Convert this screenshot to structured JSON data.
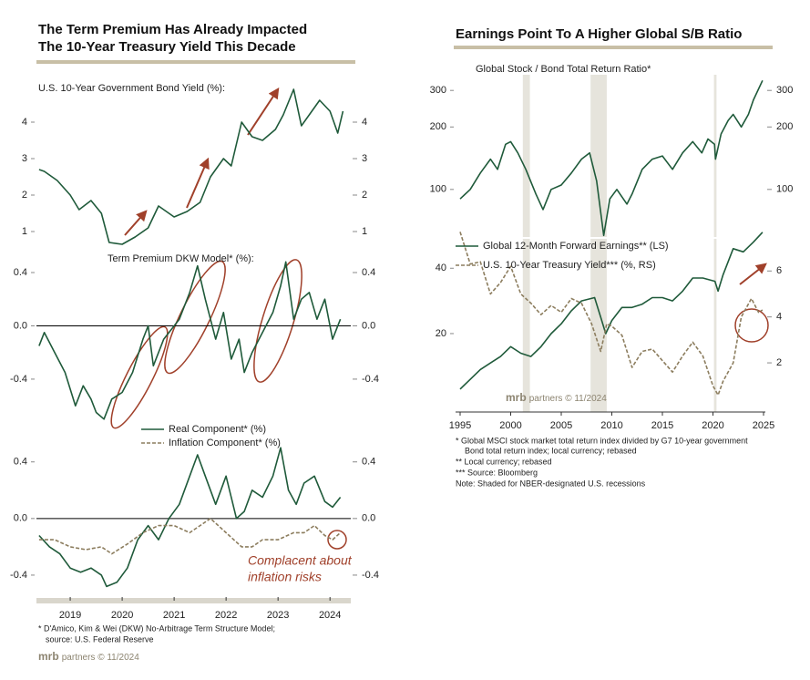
{
  "panels": [
    {
      "title": [
        "The Term Premium Has Already Impacted",
        "The 10-Year Treasury Yield This Decade"
      ],
      "footnotes": [
        "* D'Amico, Kim & Wei (DKW) No-Arbitrage Term Structure Model;",
        "source: U.S. Federal Reserve"
      ],
      "logo": {
        "brand": "mrb",
        "text": "partners © 11/2024"
      }
    },
    {
      "title": [
        "Earnings Point To A Higher Global S/B Ratio"
      ],
      "footnotes": [
        "* Global MSCI stock market total return index divided by G7 10-year government",
        "Bond total return index; local currency; rebased",
        "** Local currency; rebased",
        "*** Source: Bloomberg",
        "Note: Shaded for NBER-designated U.S. recessions"
      ]
    }
  ],
  "chart_data": [
    {
      "type": "line",
      "subtitle": "U.S. 10-Year Government Bond Yield (%):",
      "xlim": [
        2018.85,
        2024.9
      ],
      "ylim": [
        0.55,
        5.05
      ],
      "yticks": [
        1,
        2,
        3,
        4
      ],
      "series": [
        {
          "color": "#1f5a3a",
          "x": [
            2018.9,
            2019.0,
            2019.25,
            2019.5,
            2019.67,
            2019.9,
            2020.1,
            2020.25,
            2020.5,
            2020.75,
            2021.0,
            2021.2,
            2021.5,
            2021.75,
            2022.0,
            2022.2,
            2022.45,
            2022.6,
            2022.8,
            2023.0,
            2023.2,
            2023.45,
            2023.6,
            2023.8,
            2023.95,
            2024.1,
            2024.3,
            2024.5,
            2024.65,
            2024.75
          ],
          "values": [
            2.7,
            2.65,
            2.4,
            2.0,
            1.6,
            1.85,
            1.5,
            0.7,
            0.65,
            0.85,
            1.1,
            1.7,
            1.4,
            1.55,
            1.8,
            2.5,
            3.0,
            2.8,
            4.0,
            3.6,
            3.5,
            3.8,
            4.2,
            4.9,
            3.9,
            4.2,
            4.6,
            4.3,
            3.7,
            4.3
          ]
        }
      ]
    },
    {
      "type": "line",
      "subtitle": "Term Premium DKW Model* (%):",
      "xlim": [
        2018.85,
        2024.9
      ],
      "ylim": [
        -0.77,
        0.53
      ],
      "yticks": [
        -0.4,
        {
          "value": 0,
          "label": "0.0"
        },
        0.4
      ],
      "zero_line": true,
      "series": [
        {
          "color": "#1f5a3a",
          "x": [
            2018.9,
            2019.0,
            2019.2,
            2019.4,
            2019.6,
            2019.75,
            2019.9,
            2020.0,
            2020.15,
            2020.3,
            2020.5,
            2020.7,
            2020.9,
            2021.0,
            2021.1,
            2021.3,
            2021.6,
            2021.8,
            2021.95,
            2022.1,
            2022.3,
            2022.45,
            2022.6,
            2022.75,
            2022.85,
            2023.0,
            2023.2,
            2023.4,
            2023.55,
            2023.65,
            2023.8,
            2023.95,
            2024.1,
            2024.25,
            2024.4,
            2024.55,
            2024.7
          ],
          "values": [
            -0.15,
            -0.05,
            -0.2,
            -0.35,
            -0.6,
            -0.45,
            -0.55,
            -0.65,
            -0.7,
            -0.55,
            -0.5,
            -0.35,
            -0.1,
            0.0,
            -0.3,
            -0.1,
            0.05,
            0.25,
            0.45,
            0.2,
            -0.1,
            0.1,
            -0.25,
            -0.1,
            -0.35,
            -0.2,
            -0.05,
            0.1,
            0.3,
            0.48,
            0.05,
            0.2,
            0.25,
            0.05,
            0.2,
            -0.1,
            0.05
          ]
        }
      ]
    },
    {
      "type": "line",
      "xlim": [
        2018.85,
        2024.9
      ],
      "ylim": [
        -0.555,
        0.54
      ],
      "yticks": [
        -0.4,
        {
          "value": 0,
          "label": "0.0"
        },
        0.4
      ],
      "zero_line": true,
      "legend": true,
      "xticks": [
        {
          "value": 2019.5,
          "label": "2019"
        },
        {
          "value": 2020.5,
          "label": "2020"
        },
        {
          "value": 2021.5,
          "label": "2021"
        },
        {
          "value": 2022.5,
          "label": "2022"
        },
        {
          "value": 2023.5,
          "label": "2023"
        },
        {
          "value": 2024.5,
          "label": "2024"
        }
      ],
      "annotation": [
        "Complacent about",
        "inflation risks"
      ],
      "series": [
        {
          "name": "Real Component* (%)",
          "color": "#1f5a3a",
          "x": [
            2018.9,
            2019.1,
            2019.3,
            2019.5,
            2019.7,
            2019.9,
            2020.1,
            2020.2,
            2020.4,
            2020.6,
            2020.8,
            2021.0,
            2021.2,
            2021.4,
            2021.6,
            2021.8,
            2021.95,
            2022.1,
            2022.3,
            2022.5,
            2022.7,
            2022.85,
            2023.0,
            2023.2,
            2023.4,
            2023.55,
            2023.7,
            2023.85,
            2024.0,
            2024.2,
            2024.4,
            2024.55,
            2024.7
          ],
          "values": [
            -0.12,
            -0.2,
            -0.25,
            -0.35,
            -0.38,
            -0.35,
            -0.4,
            -0.48,
            -0.45,
            -0.35,
            -0.15,
            -0.05,
            -0.15,
            0.0,
            0.1,
            0.3,
            0.45,
            0.3,
            0.1,
            0.3,
            0.0,
            0.05,
            0.2,
            0.15,
            0.3,
            0.5,
            0.2,
            0.1,
            0.25,
            0.3,
            0.12,
            0.08,
            0.15
          ]
        },
        {
          "name": "Inflation Component* (%)",
          "color": "#8c7d5e",
          "dash": true,
          "x": [
            2018.9,
            2019.2,
            2019.5,
            2019.8,
            2020.1,
            2020.3,
            2020.6,
            2020.9,
            2021.2,
            2021.5,
            2021.8,
            2022.0,
            2022.2,
            2022.5,
            2022.8,
            2023.0,
            2023.2,
            2023.5,
            2023.8,
            2024.0,
            2024.2,
            2024.4,
            2024.55,
            2024.7
          ],
          "values": [
            -0.15,
            -0.15,
            -0.2,
            -0.22,
            -0.2,
            -0.25,
            -0.18,
            -0.1,
            -0.05,
            -0.05,
            -0.1,
            -0.05,
            0.0,
            -0.1,
            -0.2,
            -0.2,
            -0.15,
            -0.15,
            -0.1,
            -0.1,
            -0.05,
            -0.12,
            -0.15,
            -0.1
          ]
        }
      ]
    },
    {
      "type": "line",
      "subtitle": "Global Stock / Bond Total Return Ratio*",
      "log": true,
      "xlim": [
        1994.55,
        2025.18
      ],
      "ylim": [
        59,
        357
      ],
      "yticks": [
        100,
        200,
        300
      ],
      "shading": [
        [
          2001.2,
          2001.9
        ],
        [
          2007.9,
          2009.5
        ],
        [
          2020.1,
          2020.35
        ]
      ],
      "series": [
        {
          "color": "#1f5a3a",
          "x": [
            1995,
            1996,
            1997,
            1998,
            1998.7,
            1999.5,
            2000,
            2000.7,
            2001.5,
            2002.5,
            2003.2,
            2004,
            2005,
            2006,
            2007,
            2007.8,
            2008.5,
            2009.2,
            2009.8,
            2010.5,
            2011.5,
            2012,
            2013,
            2014,
            2015,
            2016,
            2017,
            2018,
            2018.9,
            2019.5,
            2020.15,
            2020.25,
            2020.8,
            2021.5,
            2022,
            2022.8,
            2023.5,
            2024,
            2024.9
          ],
          "values": [
            90,
            100,
            120,
            140,
            125,
            165,
            170,
            150,
            125,
            95,
            80,
            100,
            105,
            120,
            140,
            150,
            110,
            60,
            90,
            100,
            85,
            95,
            125,
            140,
            145,
            125,
            150,
            170,
            150,
            175,
            165,
            140,
            185,
            215,
            230,
            200,
            230,
            270,
            335
          ]
        }
      ]
    },
    {
      "type": "line",
      "xlim": [
        1994.55,
        2025.18
      ],
      "ylim": [
        -4,
        49
      ],
      "yticks": [
        20,
        40
      ],
      "y2lim": [
        -0.14,
        7.4
      ],
      "y2ticks": [
        2,
        4,
        6
      ],
      "legend": true,
      "xticks": [
        1995,
        2000,
        2005,
        2010,
        2015,
        2020,
        2025
      ],
      "shading": [
        [
          2001.2,
          2001.9
        ],
        [
          2007.9,
          2009.5
        ],
        [
          2020.1,
          2020.35
        ]
      ],
      "source": {
        "brand": "mrb",
        "text": "partners © 11/2024"
      },
      "series": [
        {
          "name": "Global 12-Month Forward Earnings** (LS)",
          "color": "#1f5a3a",
          "x": [
            1995,
            1996,
            1997,
            1998,
            1999,
            2000,
            2001,
            2002,
            2003,
            2004,
            2005,
            2006,
            2007,
            2008.3,
            2008.9,
            2009.4,
            2010,
            2011,
            2012,
            2013,
            2014,
            2015,
            2016,
            2017,
            2018,
            2019,
            2020.2,
            2020.5,
            2021,
            2022,
            2023,
            2024,
            2024.9
          ],
          "values": [
            3,
            6,
            9,
            11,
            13,
            16,
            14,
            13,
            16,
            20,
            23,
            27,
            30,
            31,
            25,
            20,
            24,
            28,
            28,
            29,
            31,
            31,
            30,
            33,
            37,
            37,
            36,
            33,
            38,
            46,
            45,
            48,
            51
          ]
        },
        {
          "name": "U.S. 10-Year Treasury Yield*** (%, RS)",
          "color": "#8c7d5e",
          "dash": true,
          "axis": "y2",
          "x": [
            1995,
            1996,
            1997,
            1998,
            1999,
            2000,
            2001,
            2002,
            2003,
            2004,
            2005,
            2006,
            2007,
            2008,
            2008.9,
            2009.5,
            2010,
            2011,
            2012,
            2013,
            2014,
            2015,
            2016,
            2017,
            2018,
            2019,
            2020,
            2020.5,
            2021,
            2022,
            2022.8,
            2023.8,
            2024.5,
            2024.9
          ],
          "values": [
            7.7,
            6.3,
            6.4,
            5.0,
            5.5,
            6.2,
            5.0,
            4.6,
            4.1,
            4.5,
            4.2,
            4.8,
            4.6,
            3.7,
            2.5,
            3.7,
            3.6,
            3.2,
            1.8,
            2.5,
            2.6,
            2.1,
            1.6,
            2.3,
            2.9,
            2.3,
            1.0,
            0.6,
            1.2,
            2.0,
            4.0,
            4.8,
            4.2,
            4.3
          ]
        }
      ]
    }
  ]
}
